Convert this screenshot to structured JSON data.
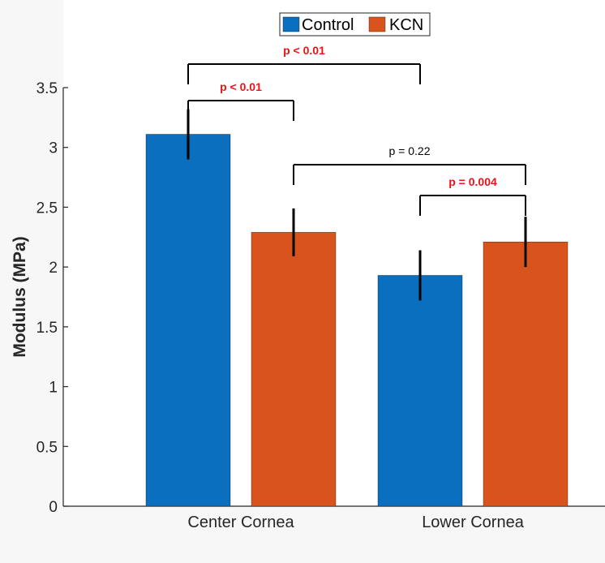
{
  "chart_data": {
    "type": "bar",
    "categories": [
      "Center Cornea",
      "Lower Cornea"
    ],
    "series": [
      {
        "name": "Control",
        "values": [
          3.11,
          1.93
        ],
        "errors": [
          0.21,
          0.21
        ]
      },
      {
        "name": "KCN",
        "values": [
          2.29,
          2.21
        ],
        "errors": [
          0.2,
          0.21
        ]
      }
    ],
    "colors": {
      "Control": "#0a6fbf",
      "KCN": "#d9541c"
    },
    "ylabel": "Modulus (MPa)",
    "xlabel": "",
    "ylim": [
      0,
      3.5
    ],
    "yticks": [
      "0",
      "0.5",
      "1",
      "1.5",
      "2",
      "2.5",
      "3",
      "3.5"
    ],
    "legend": {
      "placement": "top-center",
      "entries": [
        "Control",
        "KCN"
      ]
    },
    "grid": false,
    "annotations": [
      {
        "text": "p < 0.01",
        "from": "Center Cornea/Control",
        "to": "Lower Cornea/Control",
        "color": "#e8131b",
        "bold": true
      },
      {
        "text": "p < 0.01",
        "from": "Center Cornea/Control",
        "to": "Center Cornea/KCN",
        "color": "#e8131b",
        "bold": true
      },
      {
        "text": "p = 0.22",
        "from": "Center Cornea/KCN",
        "to": "Lower Cornea/KCN",
        "color": "#000000",
        "bold": false
      },
      {
        "text": "p = 0.004",
        "from": "Lower Cornea/Control",
        "to": "Lower Cornea/KCN",
        "color": "#e8131b",
        "bold": true
      }
    ]
  }
}
